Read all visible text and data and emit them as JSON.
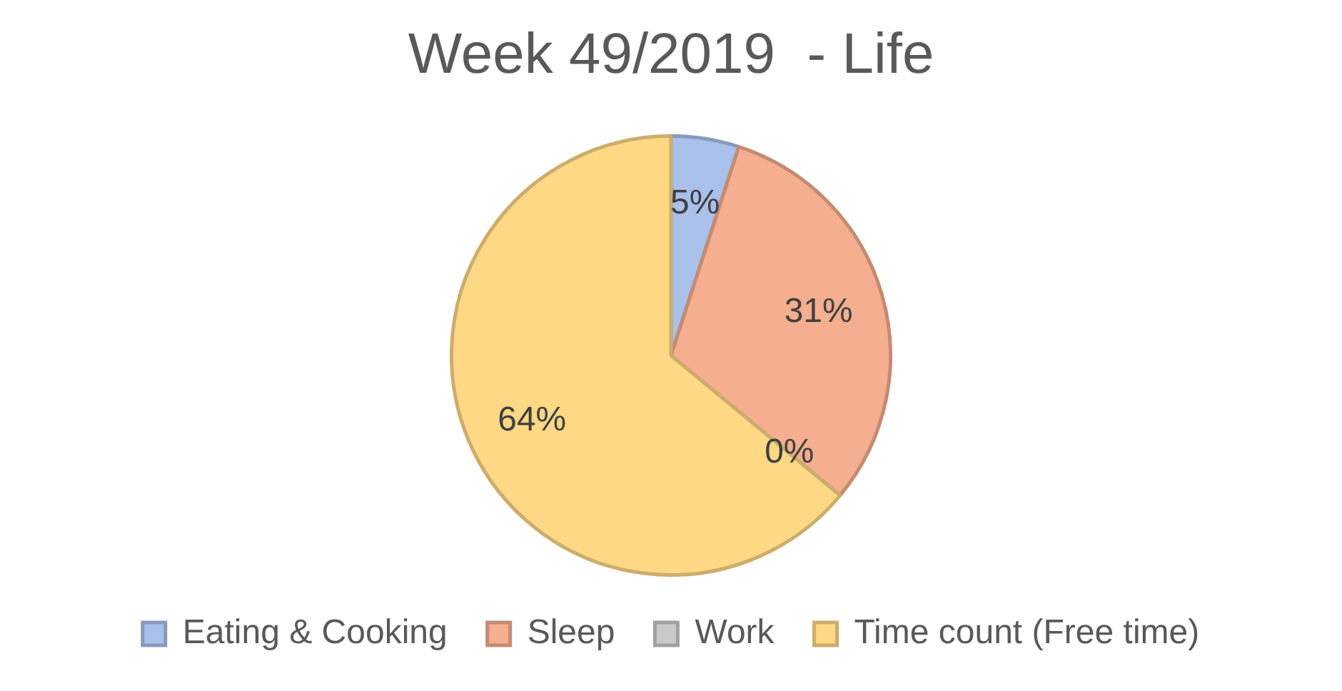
{
  "chart_data": {
    "type": "pie",
    "title": "Week 49/2019  - Life",
    "categories": [
      "Eating & Cooking",
      "Sleep",
      "Work",
      "Time count (Free time)"
    ],
    "values": [
      5,
      31,
      0,
      64
    ],
    "colors": [
      "#a9c0ea",
      "#f5ae8f",
      "#c9c9c9",
      "#ffd886"
    ],
    "value_labels": [
      "5%",
      "31%",
      "0%",
      "64%"
    ],
    "legend": "bottom"
  }
}
